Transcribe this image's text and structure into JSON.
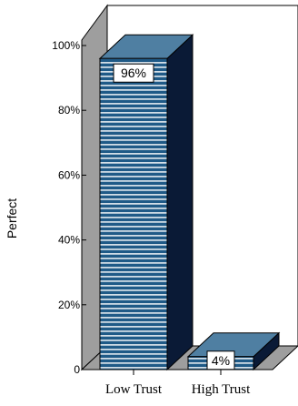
{
  "chart_data": {
    "type": "bar",
    "title": "",
    "xlabel": "",
    "ylabel": "Perfect",
    "categories": [
      "Low Trust",
      "High Trust"
    ],
    "values": [
      96,
      4
    ],
    "data_labels": [
      "96%",
      "4%"
    ],
    "ylim": [
      0,
      100
    ],
    "yticks": [
      0,
      20,
      40,
      60,
      80,
      100
    ],
    "ytick_labels": [
      "0",
      "20%",
      "40%",
      "60%",
      "80%",
      "100%"
    ],
    "grid": false,
    "legend": "none",
    "style": "3d",
    "colors": {
      "bar_front": "#1f5a87",
      "bar_stripe": "#ffffff",
      "bar_top": "#4f7fa2",
      "bar_side": "#0a1a36",
      "back_wall": "#ffffff",
      "side_wall": "#9e9e9e",
      "floor": "#9e9e9e"
    }
  }
}
